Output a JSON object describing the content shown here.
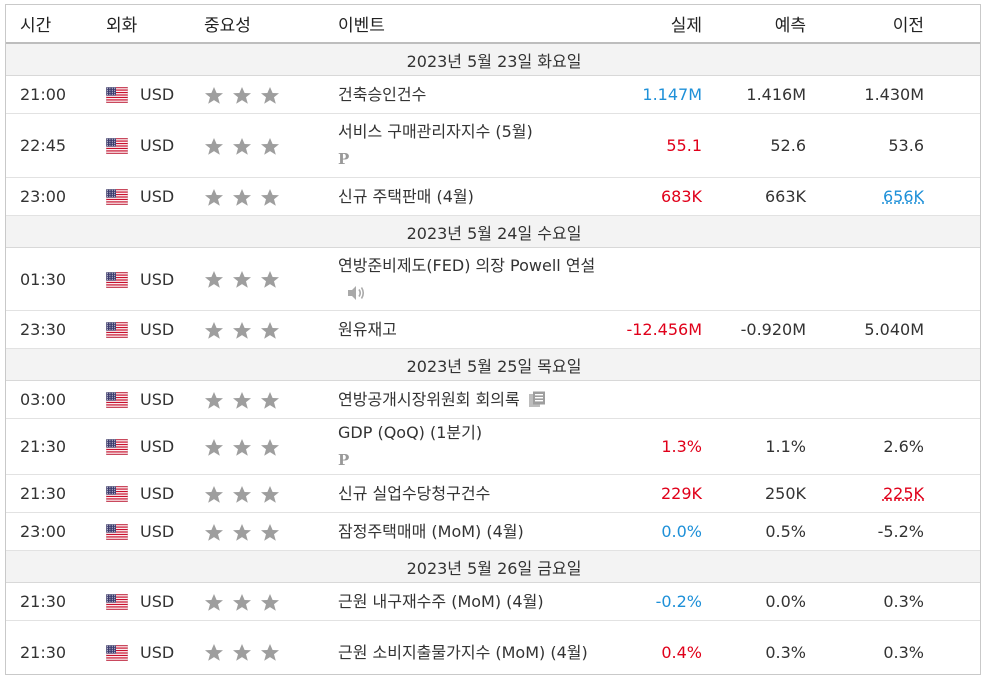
{
  "header": {
    "time": "시간",
    "currency": "외화",
    "importance": "중요성",
    "event": "이벤트",
    "actual": "실제",
    "forecast": "예측",
    "previous": "이전"
  },
  "currency_code": "USD",
  "colors": {
    "up": "#e0001a",
    "down": "#1e90d8",
    "date_row_bg": "#f3f3f3",
    "star": "#9e9e9e"
  },
  "sections": [
    {
      "date": "2023년 5월 23일 화요일",
      "rows": [
        {
          "time": "21:00",
          "currency": "USD",
          "stars": 3,
          "event": "건축승인건수",
          "icon": "",
          "actual": "1.147M",
          "actual_dir": "down",
          "forecast": "1.416M",
          "previous": "1.430M",
          "previous_style": ""
        },
        {
          "time": "22:45",
          "currency": "USD",
          "stars": 3,
          "event": "서비스 구매관리자지수 (5월)",
          "icon": "preliminary-icon",
          "actual": "55.1",
          "actual_dir": "up",
          "forecast": "52.6",
          "previous": "53.6",
          "previous_style": ""
        },
        {
          "time": "23:00",
          "currency": "USD",
          "stars": 3,
          "event": "신규 주택판매 (4월)",
          "icon": "",
          "actual": "683K",
          "actual_dir": "up",
          "forecast": "663K",
          "previous": "656K",
          "previous_style": "link-blue"
        }
      ]
    },
    {
      "date": "2023년 5월 24일 수요일",
      "rows": [
        {
          "time": "01:30",
          "currency": "USD",
          "stars": 3,
          "event": "연방준비제도(FED) 의장 Powell 연설",
          "icon": "speaker-icon",
          "actual": "",
          "actual_dir": "",
          "forecast": "",
          "previous": "",
          "previous_style": ""
        },
        {
          "time": "23:30",
          "currency": "USD",
          "stars": 3,
          "event": "원유재고",
          "icon": "",
          "actual": "-12.456M",
          "actual_dir": "up",
          "forecast": "-0.920M",
          "previous": "5.040M",
          "previous_style": ""
        }
      ]
    },
    {
      "date": "2023년 5월 25일 목요일",
      "rows": [
        {
          "time": "03:00",
          "currency": "USD",
          "stars": 3,
          "event": "연방공개시장위원회 회의록",
          "icon": "document-icon",
          "actual": "",
          "actual_dir": "",
          "forecast": "",
          "previous": "",
          "previous_style": ""
        },
        {
          "time": "21:30",
          "currency": "USD",
          "stars": 3,
          "event": "GDP (QoQ) (1분기)",
          "icon": "preliminary-icon",
          "actual": "1.3%",
          "actual_dir": "up",
          "forecast": "1.1%",
          "previous": "2.6%",
          "previous_style": ""
        },
        {
          "time": "21:30",
          "currency": "USD",
          "stars": 3,
          "event": "신규 실업수당청구건수",
          "icon": "",
          "actual": "229K",
          "actual_dir": "up",
          "forecast": "250K",
          "previous": "225K",
          "previous_style": "link-red"
        },
        {
          "time": "23:00",
          "currency": "USD",
          "stars": 3,
          "event": "잠정주택매매 (MoM) (4월)",
          "icon": "",
          "actual": "0.0%",
          "actual_dir": "down",
          "forecast": "0.5%",
          "previous": "-5.2%",
          "previous_style": ""
        }
      ]
    },
    {
      "date": "2023년 5월 26일 금요일",
      "rows": [
        {
          "time": "21:30",
          "currency": "USD",
          "stars": 3,
          "event": "근원 내구재수주 (MoM) (4월)",
          "icon": "",
          "actual": "-0.2%",
          "actual_dir": "down",
          "forecast": "0.0%",
          "previous": "0.3%",
          "previous_style": ""
        },
        {
          "time": "21:30",
          "currency": "USD",
          "stars": 3,
          "event": "근원 소비지출물가지수 (MoM) (4월)",
          "icon": "",
          "actual": "0.4%",
          "actual_dir": "up",
          "forecast": "0.3%",
          "previous": "0.3%",
          "previous_style": ""
        }
      ]
    }
  ]
}
